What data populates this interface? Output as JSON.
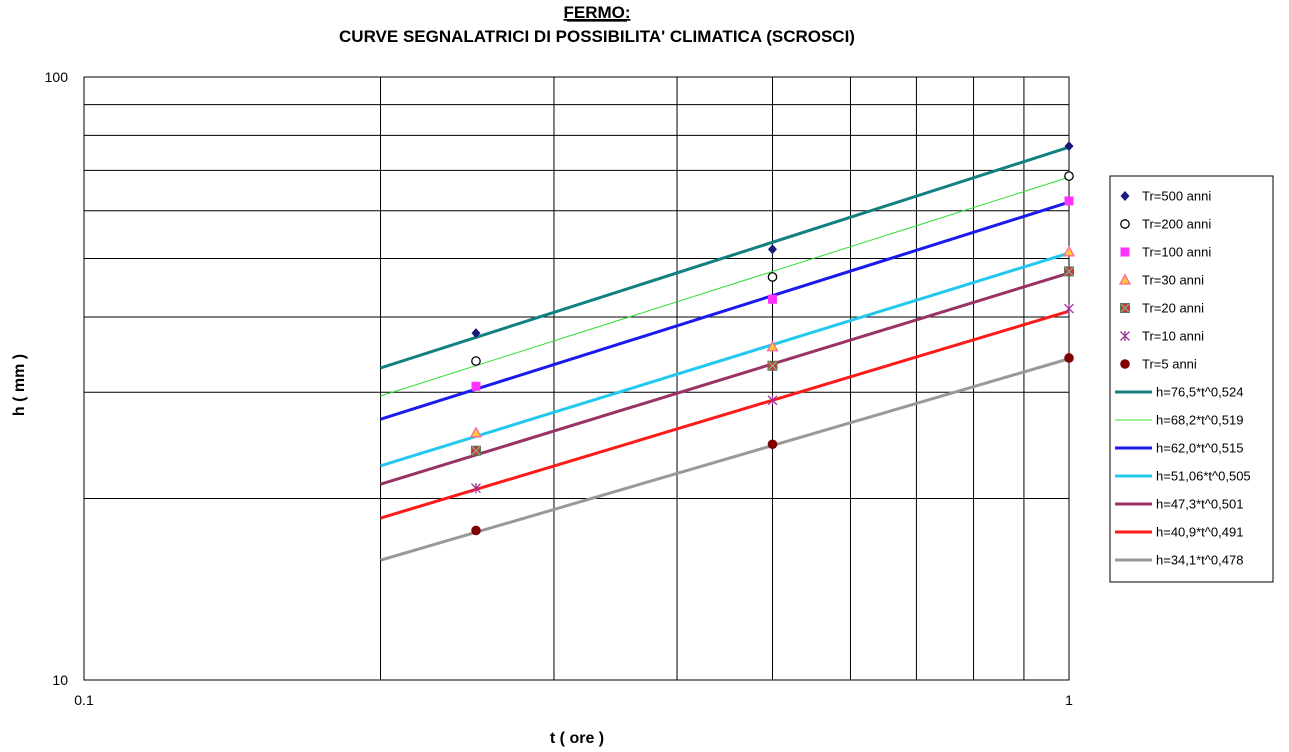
{
  "chart_data": {
    "type": "scatter",
    "title_line1": "FERMO:",
    "title_line2": "CURVE SEGNALATRICI DI POSSIBILITA' CLIMATICA (SCROSCI)",
    "xlabel": "t ( ore )",
    "ylabel": "h ( mm )",
    "xscale": "log",
    "yscale": "log",
    "xlim": [
      0.1,
      1
    ],
    "ylim": [
      10,
      100
    ],
    "x_tick_labels": [
      "0.1",
      "1"
    ],
    "y_tick_labels": [
      "10",
      "100"
    ],
    "grid": true,
    "legend_position": "right",
    "points": [
      {
        "name": "Tr=500 anni",
        "marker": "diamond",
        "color": "#1a1a7a",
        "x": [
          0.25,
          0.5,
          1
        ],
        "y": [
          37.6,
          51.8,
          76.8
        ]
      },
      {
        "name": "Tr=200 anni",
        "marker": "circle-open",
        "color": "#000000",
        "x": [
          0.25,
          0.5,
          1
        ],
        "y": [
          33.8,
          46.6,
          68.5
        ]
      },
      {
        "name": "Tr=100 anni",
        "marker": "square",
        "color": "#ff33ff",
        "x": [
          0.25,
          0.5,
          1
        ],
        "y": [
          30.7,
          42.8,
          62.3
        ]
      },
      {
        "name": "Tr=30 anni",
        "marker": "triangle",
        "color": "#ff6699",
        "x": [
          0.25,
          0.5,
          1
        ],
        "y": [
          25.7,
          35.7,
          51.3
        ]
      },
      {
        "name": "Tr=20 anni",
        "marker": "square-x",
        "color": "#cc3333",
        "x": [
          0.25,
          0.5,
          1
        ],
        "y": [
          24.0,
          33.2,
          47.6
        ]
      },
      {
        "name": "Tr=10 anni",
        "marker": "asterisk",
        "color": "#993399",
        "x": [
          0.25,
          0.5,
          1
        ],
        "y": [
          20.8,
          29.1,
          41.3
        ]
      },
      {
        "name": "Tr=5 anni",
        "marker": "dot",
        "color": "#800000",
        "x": [
          0.25,
          0.5,
          1
        ],
        "y": [
          17.7,
          24.6,
          34.2
        ]
      }
    ],
    "curves": [
      {
        "name": "h=76,5*t^0,524",
        "a": 76.5,
        "n": 0.524,
        "color": "#128080",
        "width": 3
      },
      {
        "name": "h=68,2*t^0,519",
        "a": 68.2,
        "n": 0.519,
        "color": "#33dd33",
        "width": 1
      },
      {
        "name": "h=62,0*t^0,515",
        "a": 62.0,
        "n": 0.515,
        "color": "#1a1aee",
        "width": 3
      },
      {
        "name": "h=51,06*t^0,505",
        "a": 51.06,
        "n": 0.505,
        "color": "#22c8ee",
        "width": 3
      },
      {
        "name": "h=47,3*t^0,501",
        "a": 47.3,
        "n": 0.501,
        "color": "#993366",
        "width": 3
      },
      {
        "name": "h=40,9*t^0,491",
        "a": 40.9,
        "n": 0.491,
        "color": "#ff1a1a",
        "width": 3
      },
      {
        "name": "h=34,1*t^0,478",
        "a": 34.1,
        "n": 0.478,
        "color": "#999999",
        "width": 3
      }
    ],
    "curve_x_range": [
      0.2,
      1
    ]
  }
}
